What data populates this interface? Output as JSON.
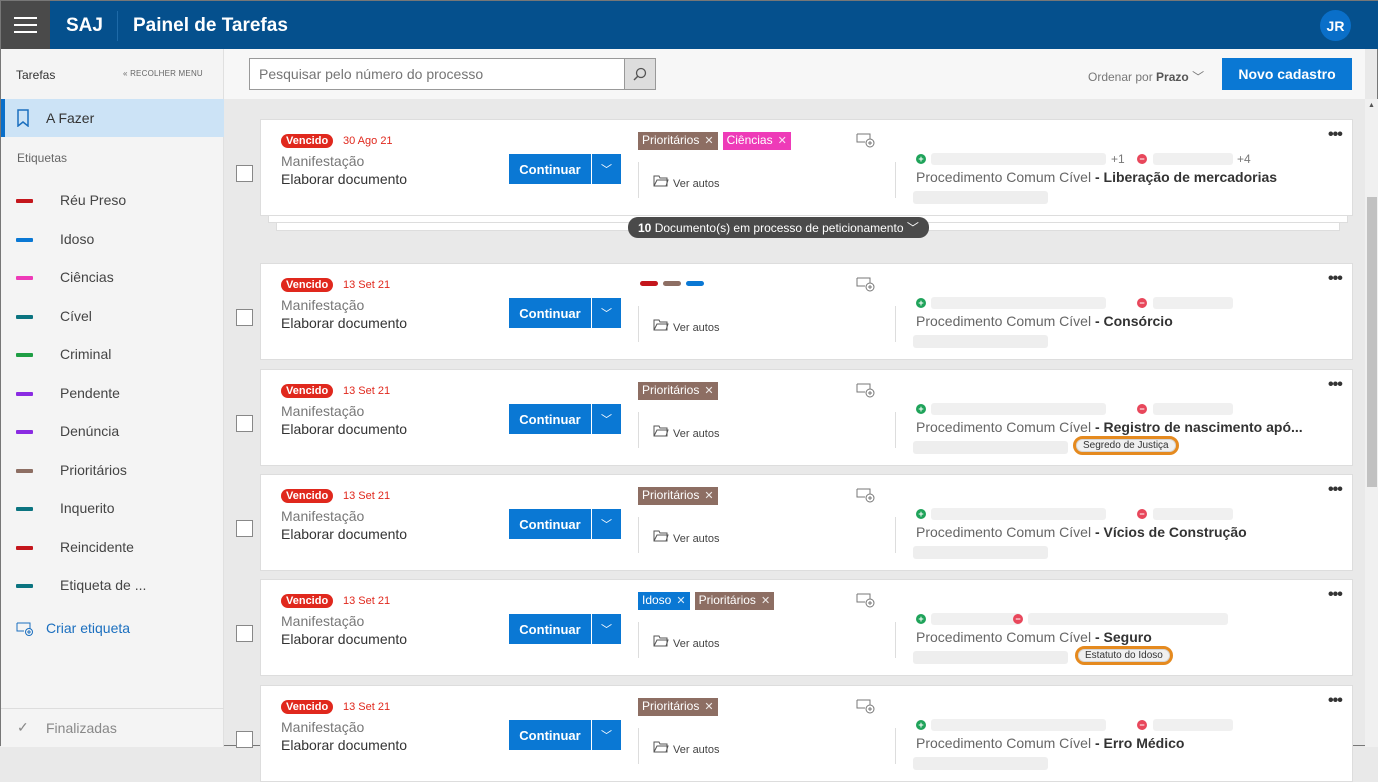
{
  "header": {
    "brand": "SAJ",
    "title": "Painel de Tarefas",
    "avatar": "JR"
  },
  "sidebar": {
    "section": "Tarefas",
    "collapse": "RECOLHER MENU",
    "active": "A Fazer",
    "labels_title": "Etiquetas",
    "labels": [
      {
        "label": "Réu Preso",
        "color": "#c4161c"
      },
      {
        "label": "Idoso",
        "color": "#0a78d4"
      },
      {
        "label": "Ciências",
        "color": "#ee3bb8"
      },
      {
        "label": "Cível",
        "color": "#0b7480"
      },
      {
        "label": "Criminal",
        "color": "#1f9e44"
      },
      {
        "label": "Pendente",
        "color": "#8a2be2"
      },
      {
        "label": "Denúncia",
        "color": "#8a2be2"
      },
      {
        "label": "Prioritários",
        "color": "#8d6e63"
      },
      {
        "label": "Inquerito",
        "color": "#0b7480"
      },
      {
        "label": "Reincidente",
        "color": "#c4161c"
      },
      {
        "label": "Etiqueta de ...",
        "color": "#0b7480"
      }
    ],
    "create": "Criar etiqueta",
    "finished": "Finalizadas"
  },
  "toolbar": {
    "search_placeholder": "Pesquisar pelo número do processo",
    "order_label": "Ordenar por",
    "order_value": "Prazo",
    "new": "Novo cadastro"
  },
  "common": {
    "status": "Vencido",
    "type": "Manifestação",
    "action": "Elaborar documento",
    "continue": "Continuar",
    "view": "Ver autos",
    "proc": "Procedimento Comum Cível"
  },
  "petition": {
    "count": "10",
    "text": "Documento(s) em processo de peticionamento"
  },
  "tasks": [
    {
      "date": "30 Ago 21",
      "subject": "Liberação de mercadorias",
      "tags": [
        {
          "label": "Prioritários",
          "color": "#8d6e63"
        },
        {
          "label": "Ciências",
          "color": "#ee3bb8"
        }
      ],
      "plus_active": "+1",
      "plus_passive": "+4"
    },
    {
      "date": "13 Set 21",
      "subject": "Consórcio",
      "bars": [
        "#c4161c",
        "#8d6e63",
        "#0a78d4"
      ]
    },
    {
      "date": "13 Set 21",
      "subject": "Registro de nascimento apó...",
      "tags": [
        {
          "label": "Prioritários",
          "color": "#8d6e63"
        }
      ],
      "badge": "Segredo de Justiça"
    },
    {
      "date": "13 Set 21",
      "subject": "Vícios de Construção",
      "tags": [
        {
          "label": "Prioritários",
          "color": "#8d6e63"
        }
      ]
    },
    {
      "date": "13 Set 21",
      "subject": "Seguro",
      "tags": [
        {
          "label": "Idoso",
          "color": "#0a78d4"
        },
        {
          "label": "Prioritários",
          "color": "#8d6e63"
        }
      ],
      "badge": "Estatuto do Idoso"
    },
    {
      "date": "13 Set 21",
      "subject": "Erro Médico",
      "tags": [
        {
          "label": "Prioritários",
          "color": "#8d6e63"
        }
      ]
    }
  ]
}
